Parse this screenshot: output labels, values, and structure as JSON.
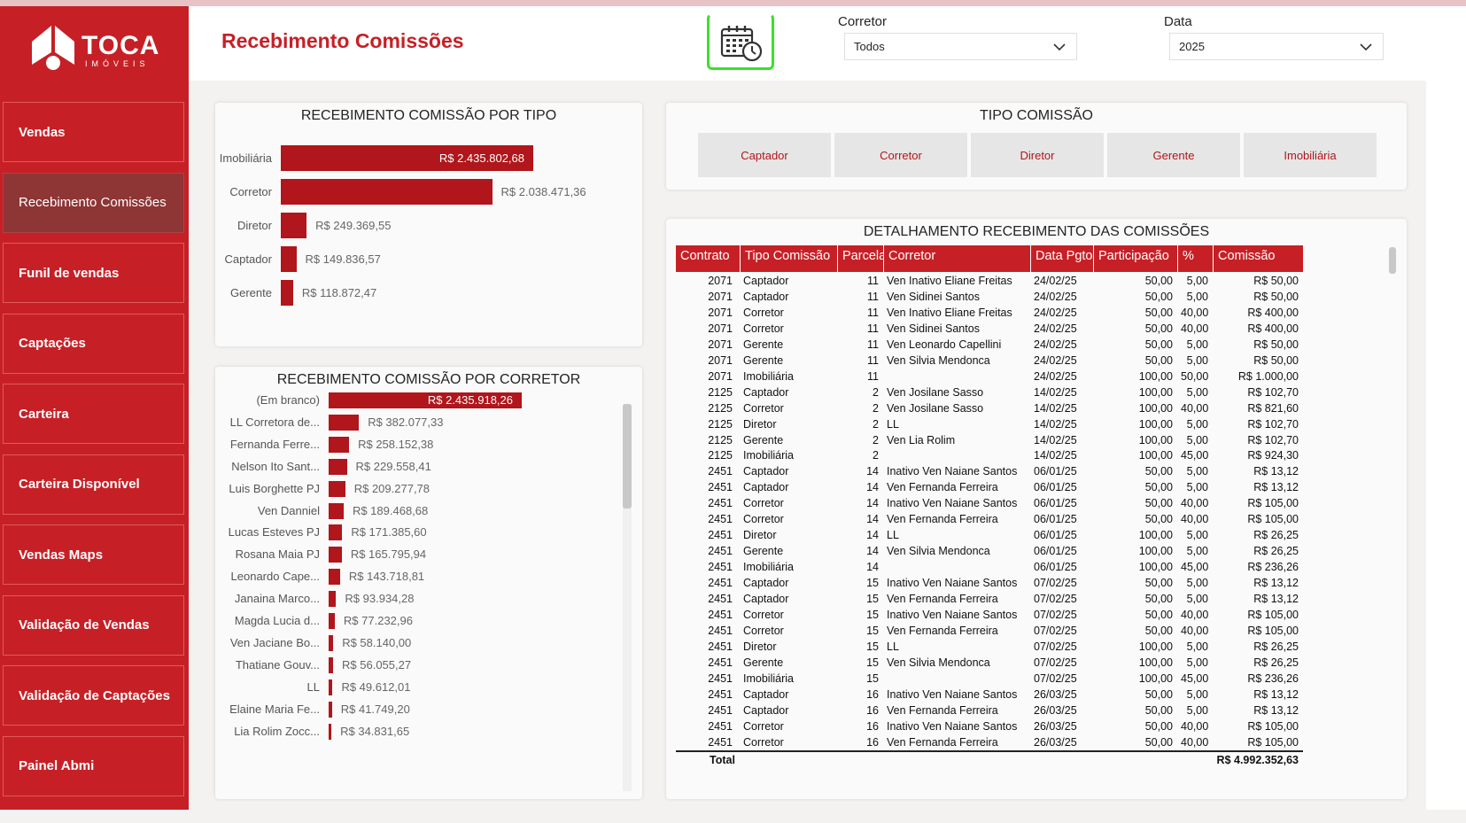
{
  "logo": {
    "name": "TOCA",
    "sub": "IMÓVEIS"
  },
  "sidebar": {
    "items": [
      {
        "label": "Vendas",
        "active": false
      },
      {
        "label": "Recebimento Comissões",
        "active": true
      },
      {
        "label": "Funil de vendas",
        "active": false
      },
      {
        "label": "Captações",
        "active": false
      },
      {
        "label": "Carteira",
        "active": false
      },
      {
        "label": "Carteira Disponível",
        "active": false
      },
      {
        "label": "Vendas Maps",
        "active": false
      },
      {
        "label": "Validação de Vendas",
        "active": false
      },
      {
        "label": "Validação de Captações",
        "active": false
      },
      {
        "label": "Painel Abmi",
        "active": false
      }
    ]
  },
  "header": {
    "title": "Recebimento Comissões",
    "calendar_icon": "calendar-clock-icon",
    "slicers": [
      {
        "label": "Corretor",
        "value": "Todos"
      },
      {
        "label": "Data",
        "value": "2025"
      }
    ]
  },
  "tipo_chart": {
    "title": "RECEBIMENTO COMISSÃO POR TIPO",
    "items": [
      {
        "label": "Imobiliária",
        "value": 2435802.68,
        "text": "R$ 2.435.802,68"
      },
      {
        "label": "Corretor",
        "value": 2038471.36,
        "text": "R$ 2.038.471,36"
      },
      {
        "label": "Diretor",
        "value": 249369.55,
        "text": "R$ 249.369,55"
      },
      {
        "label": "Captador",
        "value": 149836.57,
        "text": "R$ 149.836,57"
      },
      {
        "label": "Gerente",
        "value": 118872.47,
        "text": "R$ 118.872,47"
      }
    ]
  },
  "corretor_chart": {
    "title": "RECEBIMENTO COMISSÃO POR CORRETOR",
    "items": [
      {
        "label": "(Em branco)",
        "value": 2435918.26,
        "text": "R$ 2.435.918,26"
      },
      {
        "label": "LL Corretora de...",
        "value": 382077.33,
        "text": "R$ 382.077,33"
      },
      {
        "label": "Fernanda Ferre...",
        "value": 258152.38,
        "text": "R$ 258.152,38"
      },
      {
        "label": "Nelson Ito Sant...",
        "value": 229558.41,
        "text": "R$ 229.558,41"
      },
      {
        "label": "Luis Borghette PJ",
        "value": 209277.78,
        "text": "R$ 209.277,78"
      },
      {
        "label": "Ven Danniel",
        "value": 189468.68,
        "text": "R$ 189.468,68"
      },
      {
        "label": "Lucas Esteves PJ",
        "value": 171385.6,
        "text": "R$ 171.385,60"
      },
      {
        "label": "Rosana Maia PJ",
        "value": 165795.94,
        "text": "R$ 165.795,94"
      },
      {
        "label": "Leonardo Cape...",
        "value": 143718.81,
        "text": "R$ 143.718,81"
      },
      {
        "label": "Janaina Marco...",
        "value": 93934.28,
        "text": "R$ 93.934,28"
      },
      {
        "label": "Magda Lucia d...",
        "value": 77232.96,
        "text": "R$ 77.232,96"
      },
      {
        "label": "Ven Jaciane Bo...",
        "value": 58140.0,
        "text": "R$ 58.140,00"
      },
      {
        "label": "Thatiane Gouv...",
        "value": 56055.27,
        "text": "R$ 56.055,27"
      },
      {
        "label": "LL",
        "value": 49612.01,
        "text": "R$ 49.612,01"
      },
      {
        "label": "Elaine Maria Fe...",
        "value": 41749.2,
        "text": "R$ 41.749,20"
      },
      {
        "label": "Lia Rolim Zocc...",
        "value": 34831.65,
        "text": "R$ 34.831,65"
      }
    ]
  },
  "tipo_slicer": {
    "title": "TIPO COMISSÃO",
    "options": [
      "Captador",
      "Corretor",
      "Diretor",
      "Gerente",
      "Imobiliária"
    ]
  },
  "table": {
    "title": "DETALHAMENTO RECEBIMENTO DAS COMISSÕES",
    "columns": [
      "Contrato",
      "Tipo Comissão",
      "Parcela",
      "Corretor",
      "Data Pgto",
      "Participação",
      "%",
      "Comissão"
    ],
    "rows": [
      [
        "2071",
        "Captador",
        "11",
        "Ven Inativo Eliane Freitas",
        "24/02/25",
        "50,00",
        "5,00",
        "R$ 50,00"
      ],
      [
        "2071",
        "Captador",
        "11",
        "Ven Sidinei Santos",
        "24/02/25",
        "50,00",
        "5,00",
        "R$ 50,00"
      ],
      [
        "2071",
        "Corretor",
        "11",
        "Ven Inativo Eliane Freitas",
        "24/02/25",
        "50,00",
        "40,00",
        "R$ 400,00"
      ],
      [
        "2071",
        "Corretor",
        "11",
        "Ven Sidinei Santos",
        "24/02/25",
        "50,00",
        "40,00",
        "R$ 400,00"
      ],
      [
        "2071",
        "Gerente",
        "11",
        "Ven Leonardo Capellini",
        "24/02/25",
        "50,00",
        "5,00",
        "R$ 50,00"
      ],
      [
        "2071",
        "Gerente",
        "11",
        "Ven Silvia Mendonca",
        "24/02/25",
        "50,00",
        "5,00",
        "R$ 50,00"
      ],
      [
        "2071",
        "Imobiliária",
        "11",
        "",
        "24/02/25",
        "100,00",
        "50,00",
        "R$ 1.000,00"
      ],
      [
        "2125",
        "Captador",
        "2",
        "Ven Josilane Sasso",
        "14/02/25",
        "100,00",
        "5,00",
        "R$ 102,70"
      ],
      [
        "2125",
        "Corretor",
        "2",
        "Ven Josilane Sasso",
        "14/02/25",
        "100,00",
        "40,00",
        "R$ 821,60"
      ],
      [
        "2125",
        "Diretor",
        "2",
        "LL",
        "14/02/25",
        "100,00",
        "5,00",
        "R$ 102,70"
      ],
      [
        "2125",
        "Gerente",
        "2",
        "Ven Lia Rolim",
        "14/02/25",
        "100,00",
        "5,00",
        "R$ 102,70"
      ],
      [
        "2125",
        "Imobiliária",
        "2",
        "",
        "14/02/25",
        "100,00",
        "45,00",
        "R$ 924,30"
      ],
      [
        "2451",
        "Captador",
        "14",
        "Inativo Ven Naiane Santos",
        "06/01/25",
        "50,00",
        "5,00",
        "R$ 13,12"
      ],
      [
        "2451",
        "Captador",
        "14",
        "Ven Fernanda Ferreira",
        "06/01/25",
        "50,00",
        "5,00",
        "R$ 13,12"
      ],
      [
        "2451",
        "Corretor",
        "14",
        "Inativo Ven Naiane Santos",
        "06/01/25",
        "50,00",
        "40,00",
        "R$ 105,00"
      ],
      [
        "2451",
        "Corretor",
        "14",
        "Ven Fernanda Ferreira",
        "06/01/25",
        "50,00",
        "40,00",
        "R$ 105,00"
      ],
      [
        "2451",
        "Diretor",
        "14",
        "LL",
        "06/01/25",
        "100,00",
        "5,00",
        "R$ 26,25"
      ],
      [
        "2451",
        "Gerente",
        "14",
        "Ven Silvia Mendonca",
        "06/01/25",
        "100,00",
        "5,00",
        "R$ 26,25"
      ],
      [
        "2451",
        "Imobiliária",
        "14",
        "",
        "06/01/25",
        "100,00",
        "45,00",
        "R$ 236,26"
      ],
      [
        "2451",
        "Captador",
        "15",
        "Inativo Ven Naiane Santos",
        "07/02/25",
        "50,00",
        "5,00",
        "R$ 13,12"
      ],
      [
        "2451",
        "Captador",
        "15",
        "Ven Fernanda Ferreira",
        "07/02/25",
        "50,00",
        "5,00",
        "R$ 13,12"
      ],
      [
        "2451",
        "Corretor",
        "15",
        "Inativo Ven Naiane Santos",
        "07/02/25",
        "50,00",
        "40,00",
        "R$ 105,00"
      ],
      [
        "2451",
        "Corretor",
        "15",
        "Ven Fernanda Ferreira",
        "07/02/25",
        "50,00",
        "40,00",
        "R$ 105,00"
      ],
      [
        "2451",
        "Diretor",
        "15",
        "LL",
        "07/02/25",
        "100,00",
        "5,00",
        "R$ 26,25"
      ],
      [
        "2451",
        "Gerente",
        "15",
        "Ven Silvia Mendonca",
        "07/02/25",
        "100,00",
        "5,00",
        "R$ 26,25"
      ],
      [
        "2451",
        "Imobiliária",
        "15",
        "",
        "07/02/25",
        "100,00",
        "45,00",
        "R$ 236,26"
      ],
      [
        "2451",
        "Captador",
        "16",
        "Inativo Ven Naiane Santos",
        "26/03/25",
        "50,00",
        "5,00",
        "R$ 13,12"
      ],
      [
        "2451",
        "Captador",
        "16",
        "Ven Fernanda Ferreira",
        "26/03/25",
        "50,00",
        "5,00",
        "R$ 13,12"
      ],
      [
        "2451",
        "Corretor",
        "16",
        "Inativo Ven Naiane Santos",
        "26/03/25",
        "50,00",
        "40,00",
        "R$ 105,00"
      ],
      [
        "2451",
        "Corretor",
        "16",
        "Ven Fernanda Ferreira",
        "26/03/25",
        "50,00",
        "40,00",
        "R$ 105,00"
      ]
    ],
    "total_label": "Total",
    "total_value": "R$ 4.992.352,63"
  },
  "colors": {
    "brand_red": "#c62026",
    "bar_red": "#b0161b",
    "active_nav": "#8e3535",
    "highlight_green": "#3be02b"
  }
}
